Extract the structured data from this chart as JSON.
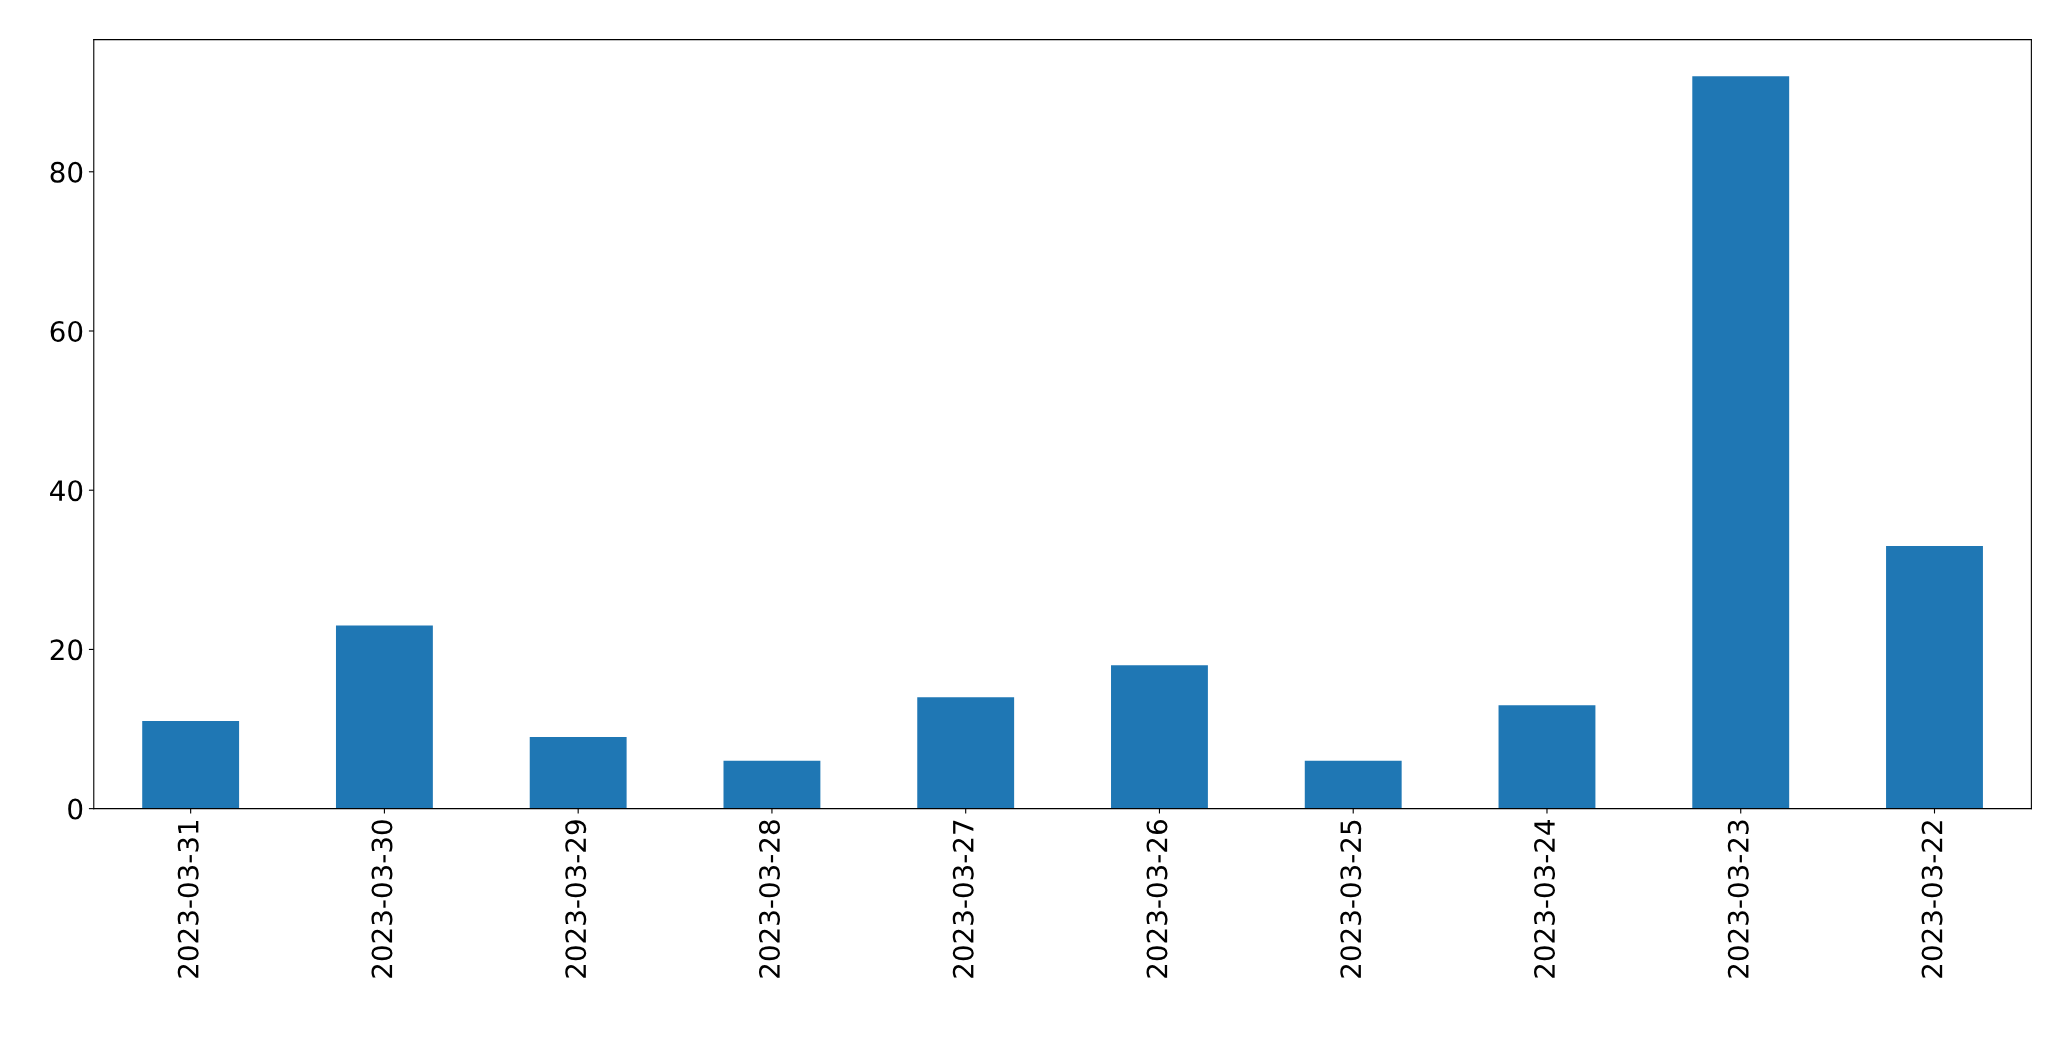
{
  "chart_data": {
    "type": "bar",
    "categories": [
      "2023-03-31",
      "2023-03-30",
      "2023-03-29",
      "2023-03-28",
      "2023-03-27",
      "2023-03-26",
      "2023-03-25",
      "2023-03-24",
      "2023-03-23",
      "2023-03-22"
    ],
    "values": [
      11,
      23,
      9,
      6,
      14,
      18,
      6,
      13,
      92,
      33
    ],
    "color": "#1f77b4",
    "ylim": [
      0,
      96.6
    ],
    "yticks": [
      0,
      20,
      40,
      60,
      80
    ],
    "grid": false,
    "legend": false
  }
}
